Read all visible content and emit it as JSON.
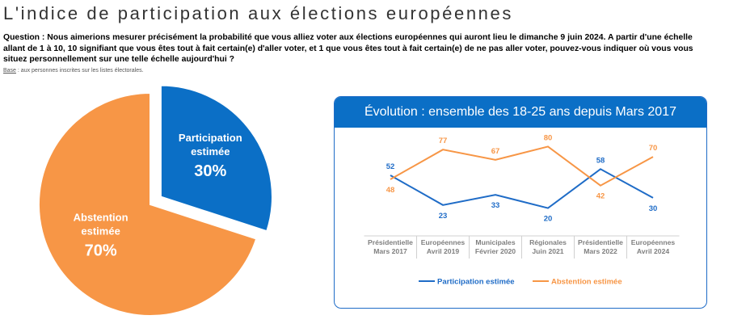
{
  "title": "L'indice de participation aux élections européennes",
  "question": "Question : Nous aimerions mesurer précisément la probabilité que vous alliez voter aux élections européennes qui auront lieu le dimanche 9 juin 2024. A partir d'une échelle allant de 1 à 10, 10 signifiant que vous êtes tout à fait certain(e) d'aller voter, et 1 que vous êtes tout à fait certain(e) de ne pas aller voter, pouvez-vous indiquer où vous vous situez personnellement sur une telle échelle aujourd'hui ?",
  "base": {
    "label": "Base",
    "text": " : aux personnes inscrites sur les listes électorales."
  },
  "colors": {
    "blue": "#1f6cc7",
    "orange": "#f79646"
  },
  "chart_data": [
    {
      "type": "pie",
      "slices": [
        {
          "label": [
            "Participation",
            "estimée"
          ],
          "value": 30,
          "display": "30%",
          "color": "#0b6fc6"
        },
        {
          "label": [
            "Abstention",
            "estimée"
          ],
          "value": 70,
          "display": "70%",
          "color": "#f79646"
        }
      ]
    },
    {
      "type": "line",
      "title": "Évolution : ensemble des 18-25 ans depuis Mars 2017",
      "categories": [
        [
          "Présidentielle",
          "Mars 2017"
        ],
        [
          "Européennes",
          "Avril 2019"
        ],
        [
          "Municipales",
          "Février 2020"
        ],
        [
          "Régionales",
          "Juin 2021"
        ],
        [
          "Présidentielle",
          "Mars 2022"
        ],
        [
          "Européennes",
          "Avril 2024"
        ]
      ],
      "series": [
        {
          "name": "Participation estimée",
          "values": [
            52,
            23,
            33,
            20,
            58,
            30
          ],
          "color": "#1f6cc7"
        },
        {
          "name": "Abstention estimée",
          "values": [
            48,
            77,
            67,
            80,
            42,
            70
          ],
          "color": "#f79646"
        }
      ],
      "ylim": [
        15,
        85
      ],
      "legend": "bottom"
    }
  ]
}
